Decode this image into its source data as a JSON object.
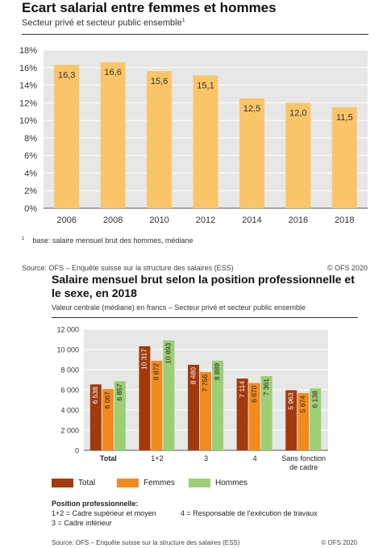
{
  "chart_data": [
    {
      "type": "bar",
      "title": "Ecart salarial entre femmes et hommes",
      "subtitle": "Secteur privé et secteur public ensemble",
      "subtitle_note_mark": "1",
      "categories": [
        "2006",
        "2008",
        "2010",
        "2012",
        "2014",
        "2016",
        "2018"
      ],
      "values": [
        16.3,
        16.6,
        15.6,
        15.1,
        12.5,
        12.0,
        11.5
      ],
      "value_labels": [
        "16,3",
        "16,6",
        "15,6",
        "15,1",
        "12,5",
        "12,0",
        "11,5"
      ],
      "yticks": [
        "0%",
        "2%",
        "4%",
        "6%",
        "8%",
        "10%",
        "12%",
        "14%",
        "16%",
        "18%"
      ],
      "ylim": [
        0,
        18
      ],
      "color": "#f9c568",
      "grid": true,
      "footnote_mark": "1",
      "footnote": "base: salaire mensuel brut des hommes, médiane",
      "source": "Source: OFS – Enquête suisse sur la structure des salaires (ESS)",
      "copyright": "© OFS 2020"
    },
    {
      "type": "bar",
      "title": "Salaire mensuel brut selon la position professionnelle et le sexe, en 2018",
      "subtitle": "Valeur centrale (médiane) en francs – Secteur privé et secteur public ensemble",
      "categories": [
        "Total",
        "1+2",
        "3",
        "4",
        "Sans fonction de cadre"
      ],
      "category_lines": [
        [
          "Total"
        ],
        [
          "1+2"
        ],
        [
          "3"
        ],
        [
          "4"
        ],
        [
          "Sans fonction",
          "de cadre"
        ]
      ],
      "series": [
        {
          "name": "Total",
          "color": "#a33a0c",
          "values": [
            6538,
            10317,
            8480,
            7114,
            5963
          ],
          "labels": [
            "6 538",
            "10 317",
            "8 480",
            "7 114",
            "5 963"
          ]
        },
        {
          "name": "Femmes",
          "color": "#f28a1e",
          "values": [
            6067,
            8872,
            7756,
            6670,
            5674
          ],
          "labels": [
            "6 067",
            "8 872",
            "7 756",
            "6 670",
            "5 674"
          ]
        },
        {
          "name": "Hommes",
          "color": "#9ccf74",
          "values": [
            6857,
            10893,
            8889,
            7361,
            6138
          ],
          "labels": [
            "6 857",
            "10 893",
            "8 889",
            "7 361",
            "6 138"
          ]
        }
      ],
      "yticks": [
        "0",
        "2 000",
        "4 000",
        "6 000",
        "8 000",
        "10 000",
        "12 000"
      ],
      "ylim": [
        0,
        12000
      ],
      "grid": true,
      "legend_position": "bottom",
      "notes_title": "Position professionnelle:",
      "notes": [
        "1+2 = Cadre supérieur et moyen",
        "3 = Cadre inférieur",
        "4 = Responsable de l'exécution de travaux"
      ],
      "source": "Source: OFS – Enquête suisse sur la structure des salaires (ESS)",
      "copyright": "© OFS 2020"
    }
  ]
}
